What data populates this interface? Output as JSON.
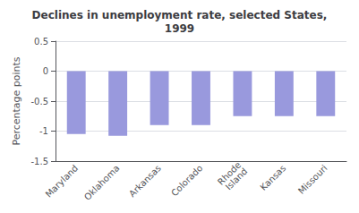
{
  "chart_data": {
    "type": "bar",
    "title": "Declines in unemployment rate, selected States,\n1999",
    "ylabel": "Percentage points",
    "categories": [
      "Maryland",
      "Oklahoma",
      "Arkansas",
      "Colorado",
      "Rhode\nIsland",
      "Kansas",
      "Missouri"
    ],
    "values": [
      -1.05,
      -1.08,
      -0.9,
      -0.9,
      -0.75,
      -0.75,
      -0.75
    ],
    "color": "#9999dd",
    "ylim": [
      -1.5,
      0.5
    ],
    "yticks": [
      -1.5,
      -1.0,
      -0.5,
      0.0,
      0.5
    ],
    "grid": true
  }
}
